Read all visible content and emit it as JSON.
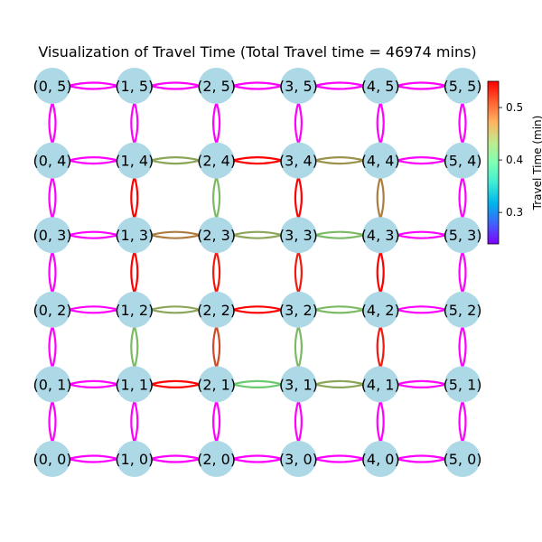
{
  "title": "Visualization of Travel Time (Total Travel time = 46974 mins)",
  "colorbar": {
    "label": "Travel Time (min)",
    "min": 0.24,
    "max": 0.55,
    "ticks": [
      0.3,
      0.4,
      0.5
    ],
    "tick_labels": [
      "0.3",
      "0.4",
      "0.5"
    ],
    "colormap": "rainbow"
  },
  "node_color": "#add8e6",
  "chart_data": {
    "type": "network",
    "grid": {
      "cols": 6,
      "rows": 6
    },
    "nodes": [
      "(0, 0)",
      "(1, 0)",
      "(2, 0)",
      "(3, 0)",
      "(4, 0)",
      "(5, 0)",
      "(0, 1)",
      "(1, 1)",
      "(2, 1)",
      "(3, 1)",
      "(4, 1)",
      "(5, 1)",
      "(0, 2)",
      "(1, 2)",
      "(2, 2)",
      "(3, 2)",
      "(4, 2)",
      "(5, 2)",
      "(0, 3)",
      "(1, 3)",
      "(2, 3)",
      "(3, 3)",
      "(4, 3)",
      "(5, 3)",
      "(0, 4)",
      "(1, 4)",
      "(2, 4)",
      "(3, 4)",
      "(4, 4)",
      "(5, 4)",
      "(0, 5)",
      "(1, 5)",
      "(2, 5)",
      "(3, 5)",
      "(4, 5)",
      "(5, 5)"
    ],
    "horizontal_edges": [
      {
        "row": 0,
        "values": [
          0.24,
          0.24,
          0.24,
          0.24,
          0.24
        ]
      },
      {
        "row": 1,
        "values": [
          0.24,
          0.55,
          0.46,
          0.48,
          0.24
        ]
      },
      {
        "row": 2,
        "values": [
          0.24,
          0.48,
          0.55,
          0.47,
          0.24
        ]
      },
      {
        "row": 3,
        "values": [
          0.24,
          0.5,
          0.48,
          0.47,
          0.24
        ]
      },
      {
        "row": 4,
        "values": [
          0.24,
          0.48,
          0.55,
          0.49,
          0.24
        ]
      },
      {
        "row": 5,
        "values": [
          0.24,
          0.24,
          0.24,
          0.24,
          0.24
        ]
      }
    ],
    "vertical_edges": [
      {
        "col": 0,
        "values": [
          0.24,
          0.24,
          0.24,
          0.24,
          0.24
        ]
      },
      {
        "col": 1,
        "values": [
          0.24,
          0.47,
          0.55,
          0.55,
          0.24
        ]
      },
      {
        "col": 2,
        "values": [
          0.24,
          0.52,
          0.54,
          0.47,
          0.24
        ]
      },
      {
        "col": 3,
        "values": [
          0.24,
          0.47,
          0.54,
          0.55,
          0.24
        ]
      },
      {
        "col": 4,
        "values": [
          0.24,
          0.54,
          0.55,
          0.5,
          0.24
        ]
      },
      {
        "col": 5,
        "values": [
          0.24,
          0.24,
          0.24,
          0.24,
          0.24
        ]
      }
    ]
  }
}
